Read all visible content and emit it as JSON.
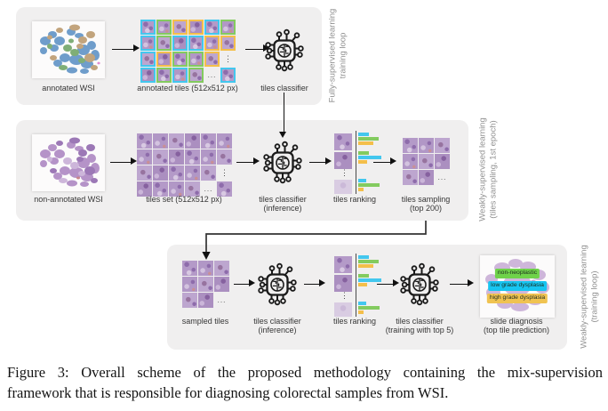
{
  "palette": {
    "cyan": "#43c7ee",
    "green": "#83cb5f",
    "orange": "#f4bf4a",
    "chip_green": "#6fd24a",
    "chip_cyan": "#17c5f1",
    "chip_orange": "#f0c351",
    "panel_bg": "#f0efef",
    "side_label": "#8f8f8f",
    "label_text": "#363636",
    "arrow": "#111111"
  },
  "ellipsis": {
    "h": "...",
    "v": "⋮"
  },
  "row1": {
    "side_label": [
      "Fully-supervised learning",
      "training loop"
    ],
    "wsi_label": "annotated WSI",
    "grid_label": "annotated tiles (512x512 px)",
    "classifier_label": "tiles classifier",
    "grid": [
      [
        "cyan",
        "green",
        "orange",
        "orange",
        "cyan",
        "green"
      ],
      [
        "cyan",
        "green",
        "cyan",
        "cyan",
        "orange",
        "orange"
      ],
      [
        "cyan",
        "orange",
        "green",
        "green",
        "orange",
        "vdots"
      ],
      [
        "cyan",
        "green",
        "cyan",
        "green",
        "hdots",
        "cyan"
      ]
    ]
  },
  "row2": {
    "side_label": [
      "Weakly-supervised learning",
      "(tiles sampling, 1st epoch)"
    ],
    "wsi_label": "non-annotated WSI",
    "grid_label": "tiles set (512x512 px)",
    "classifier_label": [
      "tiles classifier",
      "(inference)"
    ],
    "ranking_label": "tiles ranking",
    "sampling_label": [
      "tiles sampling",
      "(top 200)"
    ],
    "grid": [
      [
        "t",
        "t",
        "t",
        "t",
        "t",
        "t"
      ],
      [
        "t",
        "t",
        "t",
        "t",
        "t",
        "t"
      ],
      [
        "t",
        "t",
        "t",
        "t",
        "t",
        "vdots"
      ],
      [
        "t",
        "t",
        "t",
        "t",
        "hdots",
        "t"
      ]
    ],
    "sampling_grid": [
      [
        "t",
        "t",
        "t"
      ],
      [
        "t",
        "t",
        "t"
      ],
      [
        "t",
        "t",
        "hdots"
      ]
    ]
  },
  "row3": {
    "side_label": [
      "Weakly-supervised learning",
      "(training loop)"
    ],
    "sampled_label": "sampled tiles",
    "classifier1_label": [
      "tiles classifier",
      "(inference)"
    ],
    "ranking_label": "tiles ranking",
    "classifier2_label": [
      "tiles classifier",
      "(training with top 5)"
    ],
    "diagnosis_label": [
      "slide diagnosis",
      "(top tile prediction)"
    ],
    "sampled_grid": [
      [
        "t",
        "t",
        "t"
      ],
      [
        "t",
        "t",
        "t"
      ],
      [
        "t",
        "t",
        "hdots"
      ]
    ],
    "chips": [
      {
        "text": "non-neoplastic",
        "color": "chip_green"
      },
      {
        "text": "low grade dysplasia",
        "color": "chip_cyan"
      },
      {
        "text": "high grade dysplasia",
        "color": "chip_orange"
      }
    ]
  },
  "ranking_bars": [
    [
      {
        "c": "cyan",
        "len": 12
      },
      {
        "c": "green",
        "len": 23
      },
      {
        "c": "orange",
        "len": 17
      }
    ],
    [
      {
        "c": "green",
        "len": 12
      },
      {
        "c": "cyan",
        "len": 26
      },
      {
        "c": "orange",
        "len": 10
      }
    ],
    [
      {
        "c": "cyan",
        "len": 9
      },
      {
        "c": "green",
        "len": 24
      },
      {
        "c": "orange",
        "len": 6
      }
    ]
  ],
  "caption": {
    "line1": "Figure 3:  Overall scheme of the proposed methodology containing the mix-supervision",
    "line2": "framework that is responsible for diagnosing colorectal samples from WSI."
  }
}
